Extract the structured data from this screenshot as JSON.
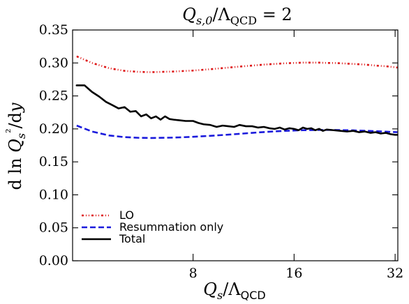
{
  "chart_data": {
    "type": "line",
    "title": "Q_{s,0}/Λ_QCD = 2",
    "xlabel": "Q_s/Λ_QCD",
    "ylabel": "d ln Q_s²/dy",
    "x_scale": "log",
    "xlim": [
      3.5,
      32.6
    ],
    "ylim": [
      0,
      0.35
    ],
    "x_ticks": [
      8,
      16,
      32
    ],
    "y_ticks": [
      "0.00",
      "0.05",
      "0.10",
      "0.15",
      "0.20",
      "0.25",
      "0.30",
      "0.35"
    ],
    "grid": false,
    "legend_position": "lower-left",
    "series": [
      {
        "name": "LO",
        "color": "#dd1111",
        "style": "dash-dot-dot",
        "x": [
          3.6,
          4.0,
          4.5,
          5.0,
          5.5,
          6.0,
          7.0,
          8.0,
          9.0,
          10.0,
          11.0,
          12.0,
          13.0,
          14.0,
          15.0,
          16.0,
          17.0,
          18.0,
          19.0,
          20.0,
          21.0,
          22.0,
          24.0,
          26.0,
          28.0,
          30.0,
          32.5
        ],
        "y": [
          0.31,
          0.3,
          0.292,
          0.288,
          0.2865,
          0.286,
          0.287,
          0.2885,
          0.2905,
          0.2925,
          0.2945,
          0.296,
          0.2975,
          0.2985,
          0.2995,
          0.3,
          0.3005,
          0.3005,
          0.3005,
          0.3,
          0.3,
          0.2995,
          0.2985,
          0.2975,
          0.296,
          0.295,
          0.293
        ]
      },
      {
        "name": "Resummation only",
        "color": "#1a1adc",
        "style": "dashed",
        "x": [
          3.6,
          4.0,
          4.5,
          5.0,
          5.5,
          6.0,
          7.0,
          8.0,
          9.0,
          10.0,
          11.0,
          12.0,
          13.0,
          14.0,
          15.0,
          16.0,
          17.0,
          18.0,
          19.0,
          20.0,
          21.0,
          22.0,
          24.0,
          26.0,
          28.0,
          30.0,
          32.5
        ],
        "y": [
          0.205,
          0.196,
          0.19,
          0.1875,
          0.1865,
          0.1862,
          0.1868,
          0.188,
          0.1895,
          0.191,
          0.1925,
          0.194,
          0.1952,
          0.1962,
          0.197,
          0.1975,
          0.198,
          0.1982,
          0.1984,
          0.1984,
          0.1984,
          0.1982,
          0.1978,
          0.1972,
          0.1965,
          0.1958,
          0.195
        ]
      },
      {
        "name": "Total",
        "color": "#000000",
        "style": "solid",
        "x": [
          3.6,
          3.8,
          4.0,
          4.2,
          4.4,
          4.6,
          4.8,
          5.0,
          5.2,
          5.4,
          5.6,
          5.8,
          6.0,
          6.2,
          6.4,
          6.6,
          6.8,
          7.0,
          7.3,
          7.6,
          8.0,
          8.3,
          8.6,
          9.0,
          9.4,
          9.8,
          10.2,
          10.6,
          11.0,
          11.5,
          12.0,
          12.5,
          13.0,
          13.5,
          14.0,
          14.5,
          15.0,
          15.5,
          16.0,
          16.5,
          17.0,
          17.5,
          18.0,
          18.5,
          19.0,
          19.5,
          20.0,
          21.0,
          22.0,
          23.0,
          24.0,
          25.0,
          26.0,
          27.0,
          28.0,
          29.0,
          30.0,
          31.0,
          32.0,
          32.5
        ],
        "y": [
          0.266,
          0.266,
          0.256,
          0.249,
          0.241,
          0.236,
          0.231,
          0.233,
          0.226,
          0.227,
          0.219,
          0.222,
          0.216,
          0.219,
          0.214,
          0.219,
          0.215,
          0.214,
          0.213,
          0.212,
          0.212,
          0.209,
          0.207,
          0.206,
          0.203,
          0.205,
          0.204,
          0.203,
          0.206,
          0.204,
          0.204,
          0.202,
          0.203,
          0.201,
          0.2,
          0.202,
          0.199,
          0.201,
          0.2,
          0.198,
          0.202,
          0.2,
          0.201,
          0.198,
          0.2,
          0.197,
          0.199,
          0.198,
          0.197,
          0.196,
          0.197,
          0.195,
          0.196,
          0.194,
          0.195,
          0.193,
          0.194,
          0.192,
          0.191,
          0.191
        ]
      }
    ]
  }
}
